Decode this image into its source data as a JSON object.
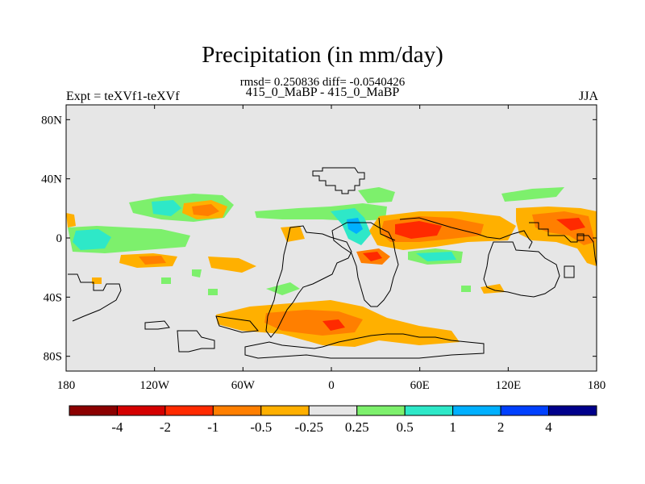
{
  "header": {
    "title": "Precipitation (in mm/day)",
    "subtitle": "rmsd= 0.250836 diff= -0.0540426",
    "case_label": "415_0_MaBP - 415_0_MaBP",
    "left_label": "Expt = teXVf1-teXVf",
    "right_label": "JJA"
  },
  "map": {
    "y_ticks": [
      {
        "lat": 80,
        "label": "80N"
      },
      {
        "lat": 40,
        "label": "40N"
      },
      {
        "lat": 0,
        "label": "0"
      },
      {
        "lat": -40,
        "label": "40S"
      },
      {
        "lat": -80,
        "label": "80S"
      }
    ],
    "x_ticks": [
      {
        "lon": -180,
        "label": "180"
      },
      {
        "lon": -120,
        "label": "120W"
      },
      {
        "lon": -60,
        "label": "60W"
      },
      {
        "lon": 0,
        "label": "0"
      },
      {
        "lon": 60,
        "label": "60E"
      },
      {
        "lon": 120,
        "label": "120E"
      },
      {
        "lon": 180,
        "label": "180"
      }
    ],
    "background_color": "#e6e6e6"
  },
  "colorbar": {
    "labels": [
      "-4",
      "-2",
      "-1",
      "-0.5",
      "-0.25",
      "0.25",
      "0.5",
      "1",
      "2",
      "4"
    ],
    "colors": [
      "#8b0000",
      "#d40000",
      "#ff2a00",
      "#ff7f00",
      "#ffb000",
      "#e6e6e6",
      "#7df06c",
      "#2ee8c8",
      "#00b0ff",
      "#0040ff",
      "#00008b"
    ]
  },
  "colors": {
    "land_outline": "#000000"
  }
}
